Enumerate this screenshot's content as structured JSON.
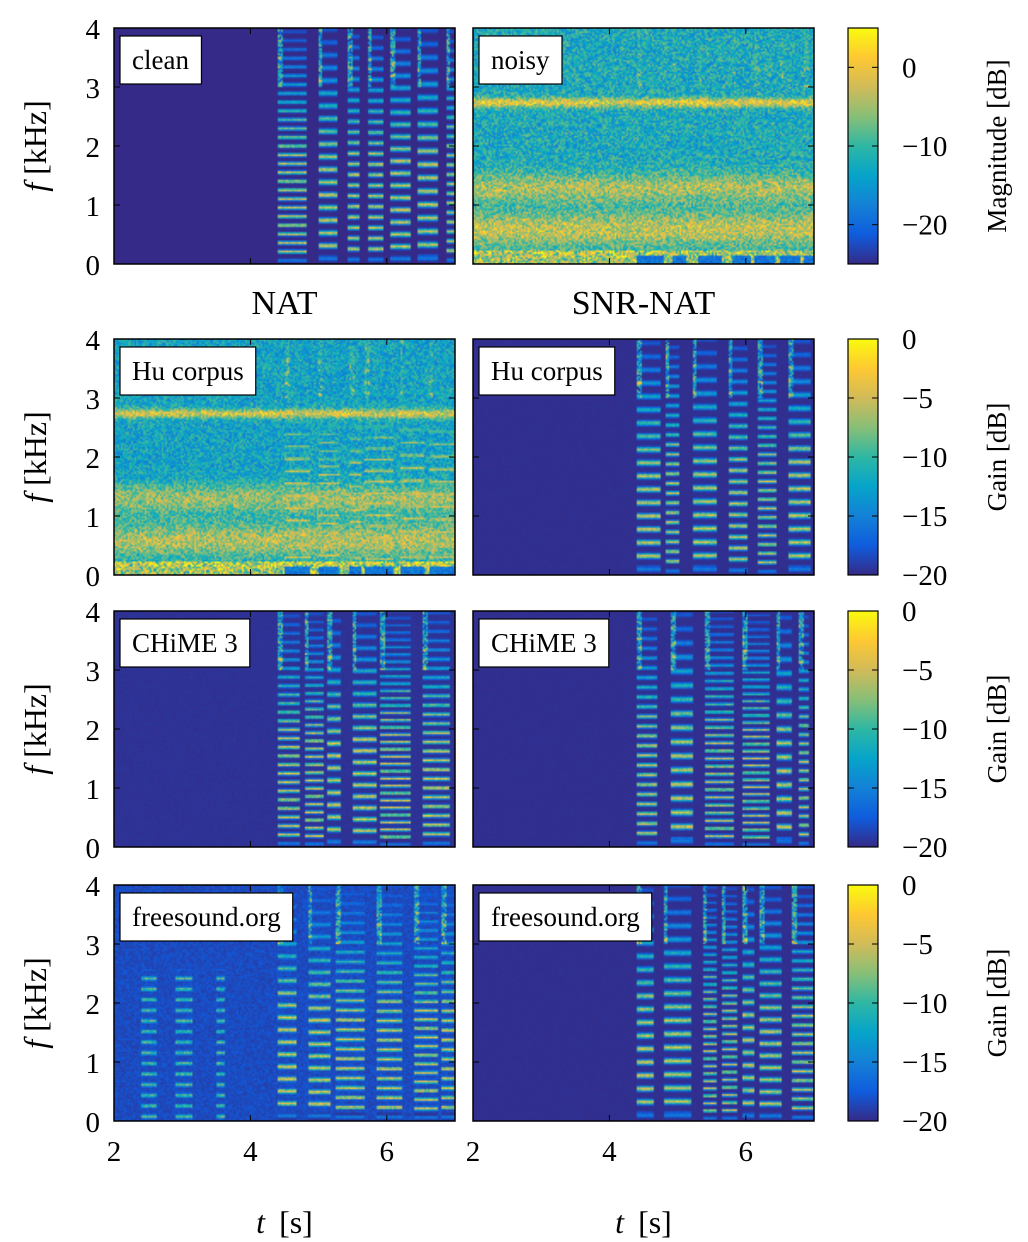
{
  "chart_data": {
    "type": "heatmap",
    "column_titles": [
      "NAT",
      "SNR-NAT"
    ],
    "x_axis": {
      "label_var": "t",
      "label_unit": "[s]",
      "range": [
        2,
        7
      ],
      "ticks": [
        2,
        4,
        6
      ]
    },
    "y_axis": {
      "label_var": "f",
      "label_unit": "[kHz]",
      "range": [
        0,
        4
      ],
      "ticks": [
        0,
        1,
        2,
        3,
        4
      ]
    },
    "rows": [
      {
        "colorbar": {
          "label": "Magnitude [dB]",
          "range": [
            -25,
            5
          ],
          "ticks": [
            0,
            -10,
            -20
          ],
          "tick_labels": [
            "0",
            "−10",
            "−20"
          ]
        },
        "panels": [
          {
            "tag": "clean",
            "speech_onset_s": 4.4,
            "noise_floor": 0.0,
            "speech_level": 0.9,
            "low_band_boost": 0.0
          },
          {
            "tag": "noisy",
            "speech_onset_s": 4.4,
            "noise_floor": 0.6,
            "speech_level": 0.6,
            "low_band_boost": 0.5
          }
        ]
      },
      {
        "colorbar": {
          "label": "Gain [dB]",
          "range": [
            -20,
            0
          ],
          "ticks": [
            0,
            -5,
            -10,
            -15,
            -20
          ],
          "tick_labels": [
            "0",
            "−5",
            "−10",
            "−15",
            "−20"
          ]
        },
        "panels": [
          {
            "tag": "Hu corpus",
            "speech_onset_s": 4.5,
            "noise_floor": 0.55,
            "speech_level": 0.9,
            "low_band_boost": 0.6
          },
          {
            "tag": "Hu corpus",
            "speech_onset_s": 4.4,
            "noise_floor": 0.02,
            "speech_level": 0.9,
            "low_band_boost": 0.0
          }
        ]
      },
      {
        "colorbar": {
          "label": "Gain [dB]",
          "range": [
            -20,
            0
          ],
          "ticks": [
            0,
            -5,
            -10,
            -15,
            -20
          ],
          "tick_labels": [
            "0",
            "−5",
            "−10",
            "−15",
            "−20"
          ]
        },
        "panels": [
          {
            "tag": "CHiME 3",
            "speech_onset_s": 4.4,
            "noise_floor": 0.03,
            "speech_level": 0.95,
            "low_band_boost": 0.0
          },
          {
            "tag": "CHiME 3",
            "speech_onset_s": 4.4,
            "noise_floor": 0.02,
            "speech_level": 0.9,
            "low_band_boost": 0.0
          }
        ]
      },
      {
        "colorbar": {
          "label": "Gain [dB]",
          "range": [
            -20,
            0
          ],
          "ticks": [
            0,
            -5,
            -10,
            -15,
            -20
          ],
          "tick_labels": [
            "0",
            "−5",
            "−10",
            "−15",
            "−20"
          ]
        },
        "panels": [
          {
            "tag": "freesound.org",
            "speech_onset_s": 4.4,
            "noise_floor": 0.12,
            "speech_level": 0.95,
            "low_band_boost": 0.0,
            "early_bursts": true
          },
          {
            "tag": "freesound.org",
            "speech_onset_s": 4.4,
            "noise_floor": 0.02,
            "speech_level": 0.9,
            "low_band_boost": 0.0
          }
        ]
      }
    ],
    "colormap": [
      "#352a87",
      "#0f5cdd",
      "#1481d6",
      "#06a4ca",
      "#2eb7a4",
      "#87bf77",
      "#d1bb59",
      "#fec832",
      "#f9fb0e"
    ]
  }
}
